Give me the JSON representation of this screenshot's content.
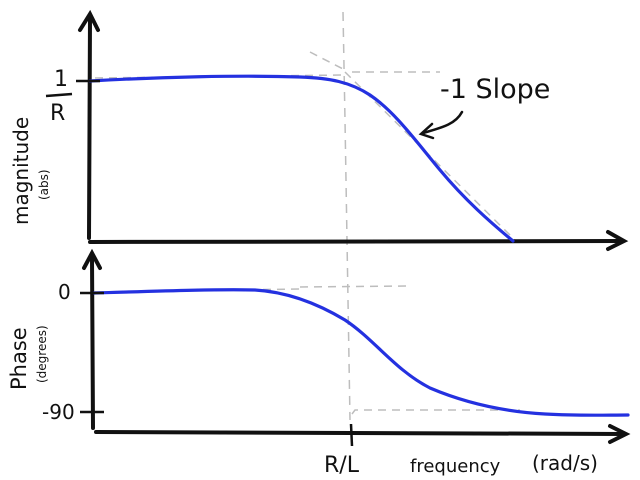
{
  "labels": {
    "mag_axis": "magnitude",
    "mag_unit": "(abs)",
    "mag_tick_num": "1",
    "mag_tick_den": "R",
    "slope_note": "-1 Slope",
    "phase_axis": "Phase",
    "phase_unit": "(degrees)",
    "phase_tick_top": "0",
    "phase_tick_bottom": "-90",
    "freq_tick": "R/L",
    "freq_axis": "frequency",
    "freq_unit": "(rad/s)"
  },
  "colors": {
    "curve": "#2431e0",
    "ink": "#111111",
    "guide": "#bdbdbd"
  }
}
